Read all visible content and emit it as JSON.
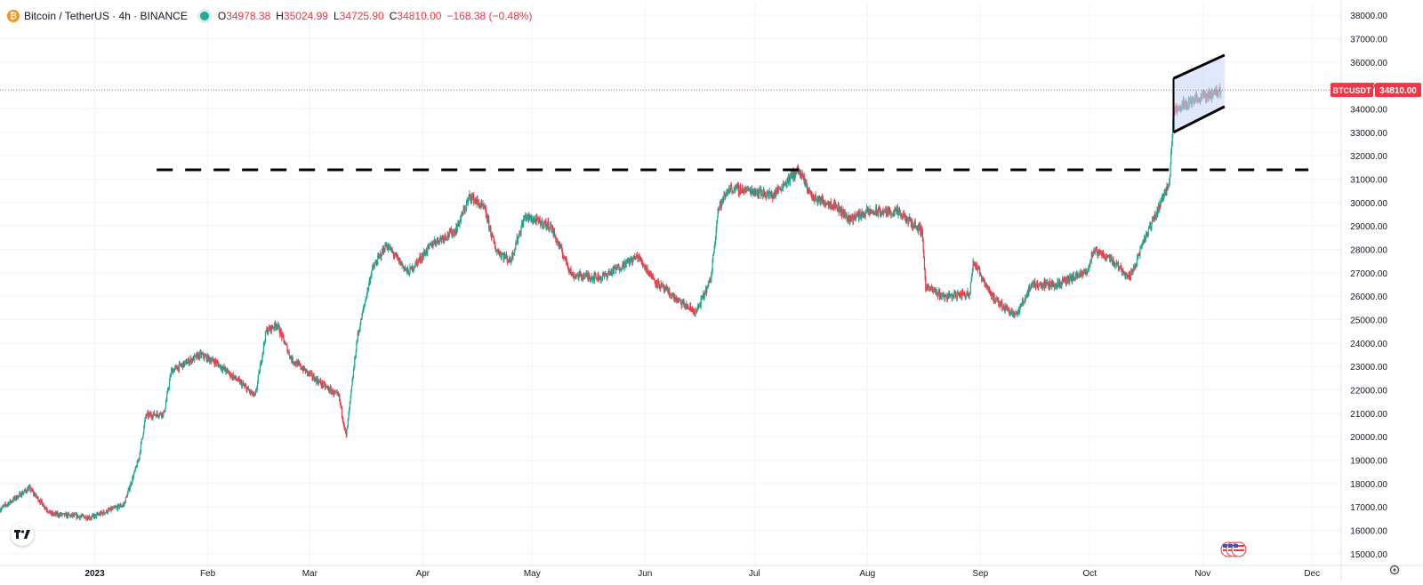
{
  "header": {
    "title": "Bitcoin / TetherUS · 4h · BINANCE",
    "o_label": "O",
    "o_value": "34978.38",
    "h_label": "H",
    "h_value": "35024.99",
    "l_label": "L",
    "l_value": "34725.90",
    "c_label": "C",
    "c_value": "34810.00",
    "change": "−168.38 (−0.48%)"
  },
  "price_tag": {
    "symbol": "BTCUSDT",
    "price": "34810.00"
  },
  "colors": {
    "up": "#22ab94",
    "down": "#f23645",
    "channel_fill": "#c9d6f7",
    "grid": "#f0f3fa",
    "text": "#131722"
  },
  "icons": {
    "symbol": "bitcoin-icon",
    "status": "live-dot-icon",
    "logo": "tradingview-logo-icon",
    "flag": "us-flag-icon",
    "settings": "gear-icon"
  },
  "chart_data": {
    "type": "candlestick",
    "interval": "4h",
    "ylim": [
      14500,
      38500
    ],
    "x_range": [
      "2022-12-06",
      "2023-12-09"
    ],
    "y_ticks": [
      "15000.00",
      "16000.00",
      "17000.00",
      "18000.00",
      "19000.00",
      "20000.00",
      "21000.00",
      "22000.00",
      "23000.00",
      "24000.00",
      "25000.00",
      "26000.00",
      "27000.00",
      "28000.00",
      "29000.00",
      "30000.00",
      "31000.00",
      "32000.00",
      "33000.00",
      "34000.00",
      "35000.00",
      "36000.00",
      "37000.00",
      "38000.00"
    ],
    "x_ticks": [
      {
        "label": "2023",
        "date": "2023-01-01"
      },
      {
        "label": "Feb",
        "date": "2023-02-01"
      },
      {
        "label": "Mar",
        "date": "2023-03-01"
      },
      {
        "label": "Apr",
        "date": "2023-04-01"
      },
      {
        "label": "May",
        "date": "2023-05-01"
      },
      {
        "label": "Jun",
        "date": "2023-06-01"
      },
      {
        "label": "Jul",
        "date": "2023-07-01"
      },
      {
        "label": "Aug",
        "date": "2023-08-01"
      },
      {
        "label": "Sep",
        "date": "2023-09-01"
      },
      {
        "label": "Oct",
        "date": "2023-10-01"
      },
      {
        "label": "Nov",
        "date": "2023-11-01"
      },
      {
        "label": "Dec",
        "date": "2023-12-01"
      }
    ],
    "price_path": [
      [
        "2022-12-06",
        16900
      ],
      [
        "2022-12-14",
        17800
      ],
      [
        "2022-12-20",
        16700
      ],
      [
        "2022-12-31",
        16550
      ],
      [
        "2023-01-09",
        17100
      ],
      [
        "2023-01-13",
        19000
      ],
      [
        "2023-01-15",
        20900
      ],
      [
        "2023-01-20",
        21000
      ],
      [
        "2023-01-22",
        22800
      ],
      [
        "2023-01-30",
        23500
      ],
      [
        "2023-02-03",
        23200
      ],
      [
        "2023-02-10",
        22300
      ],
      [
        "2023-02-14",
        21700
      ],
      [
        "2023-02-17",
        24500
      ],
      [
        "2023-02-20",
        24800
      ],
      [
        "2023-02-24",
        23300
      ],
      [
        "2023-03-03",
        22400
      ],
      [
        "2023-03-09",
        21700
      ],
      [
        "2023-03-11",
        20000
      ],
      [
        "2023-03-14",
        24200
      ],
      [
        "2023-03-18",
        27100
      ],
      [
        "2023-03-22",
        28200
      ],
      [
        "2023-03-28",
        27000
      ],
      [
        "2023-04-04",
        28300
      ],
      [
        "2023-04-10",
        28800
      ],
      [
        "2023-04-14",
        30300
      ],
      [
        "2023-04-18",
        29700
      ],
      [
        "2023-04-21",
        28000
      ],
      [
        "2023-04-25",
        27500
      ],
      [
        "2023-04-29",
        29400
      ],
      [
        "2023-05-06",
        29000
      ],
      [
        "2023-05-12",
        26900
      ],
      [
        "2023-05-20",
        26800
      ],
      [
        "2023-05-30",
        27700
      ],
      [
        "2023-06-04",
        26600
      ],
      [
        "2023-06-10",
        25800
      ],
      [
        "2023-06-15",
        25300
      ],
      [
        "2023-06-19",
        26700
      ],
      [
        "2023-06-21",
        29700
      ],
      [
        "2023-06-24",
        30600
      ],
      [
        "2023-07-01",
        30500
      ],
      [
        "2023-07-06",
        30300
      ],
      [
        "2023-07-13",
        31400
      ],
      [
        "2023-07-17",
        30200
      ],
      [
        "2023-07-23",
        29900
      ],
      [
        "2023-07-27",
        29300
      ],
      [
        "2023-08-01",
        29600
      ],
      [
        "2023-08-09",
        29600
      ],
      [
        "2023-08-16",
        28800
      ],
      [
        "2023-08-17",
        26400
      ],
      [
        "2023-08-22",
        26000
      ],
      [
        "2023-08-29",
        26100
      ],
      [
        "2023-08-30",
        27500
      ],
      [
        "2023-09-05",
        25800
      ],
      [
        "2023-09-11",
        25200
      ],
      [
        "2023-09-15",
        26500
      ],
      [
        "2023-09-22",
        26500
      ],
      [
        "2023-09-30",
        27000
      ],
      [
        "2023-10-02",
        27900
      ],
      [
        "2023-10-06",
        27700
      ],
      [
        "2023-10-12",
        26800
      ],
      [
        "2023-10-16",
        28400
      ],
      [
        "2023-10-20",
        29800
      ],
      [
        "2023-10-23",
        31000
      ],
      [
        "2023-10-24",
        34000
      ],
      [
        "2023-10-28",
        34300
      ],
      [
        "2023-11-03",
        34600
      ],
      [
        "2023-11-06",
        34810
      ]
    ],
    "horizontal_level": {
      "value": 31400,
      "style": "dashed",
      "from": "2023-01-18",
      "to": "2023-11-30"
    },
    "channel": {
      "top": [
        [
          "2023-10-24",
          35300
        ],
        [
          "2023-11-07",
          36300
        ]
      ],
      "bottom": [
        [
          "2023-10-24",
          33000
        ],
        [
          "2023-11-07",
          34100
        ]
      ]
    },
    "last_price": 34810
  }
}
